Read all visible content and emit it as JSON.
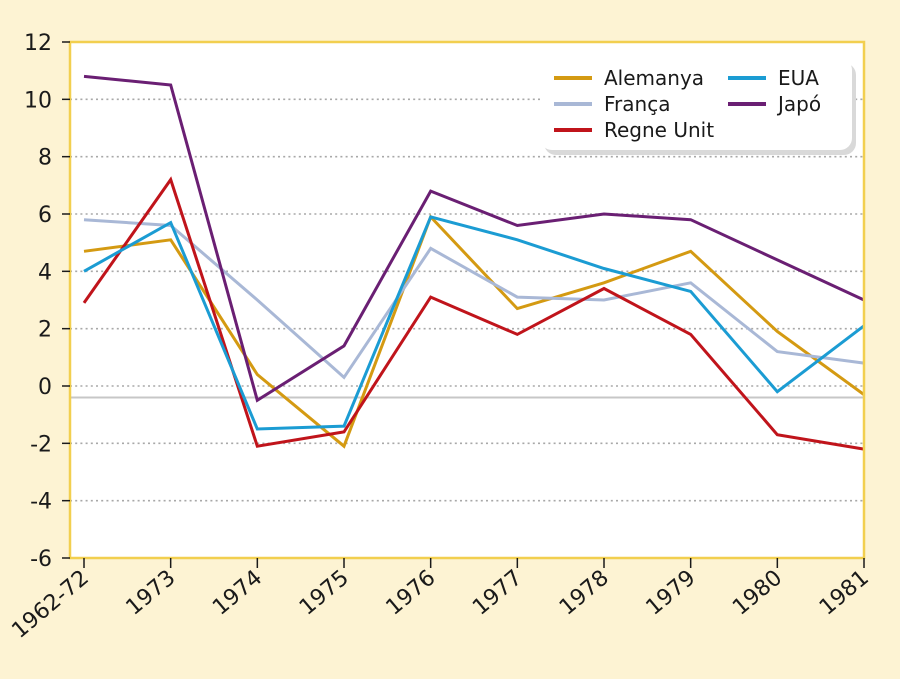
{
  "chart_data": {
    "type": "line",
    "title": "",
    "xlabel": "",
    "ylabel": "",
    "x": [
      "1962-72",
      "1973",
      "1974",
      "1975",
      "1976",
      "1977",
      "1978",
      "1979",
      "1980",
      "1981"
    ],
    "ylim": [
      -6,
      12
    ],
    "yticks": [
      12,
      10,
      8,
      6,
      4,
      2,
      0,
      -2,
      -4,
      -6
    ],
    "ytick_labels": [
      "12",
      "10",
      "8",
      "6",
      "4",
      "2",
      "0",
      "-2",
      "-4",
      "-6"
    ],
    "grid": "horizontal dotted",
    "baseline": -0.4,
    "legend_position": "top-right",
    "series": [
      {
        "name": "Alemanya",
        "color": "#d49a12",
        "values": [
          4.7,
          5.1,
          0.4,
          -2.1,
          5.9,
          2.7,
          3.6,
          4.7,
          1.9,
          -0.3
        ]
      },
      {
        "name": "França",
        "color": "#a9b8d6",
        "values": [
          5.8,
          5.6,
          3.0,
          0.3,
          4.8,
          3.1,
          3.0,
          3.6,
          1.2,
          0.8
        ]
      },
      {
        "name": "Regne Unit",
        "color": "#c0141b",
        "values": [
          2.9,
          7.2,
          -2.1,
          -1.6,
          3.1,
          1.8,
          3.4,
          1.8,
          -1.7,
          -2.2
        ]
      },
      {
        "name": "EUA",
        "color": "#1b9cd3",
        "values": [
          4.0,
          5.7,
          -1.5,
          -1.4,
          5.9,
          5.1,
          4.1,
          3.3,
          -0.2,
          2.1
        ]
      },
      {
        "name": "Japó",
        "color": "#6a1f73",
        "values": [
          10.8,
          10.5,
          -0.5,
          1.4,
          6.8,
          5.6,
          6.0,
          5.8,
          4.4,
          3.0
        ]
      }
    ]
  }
}
